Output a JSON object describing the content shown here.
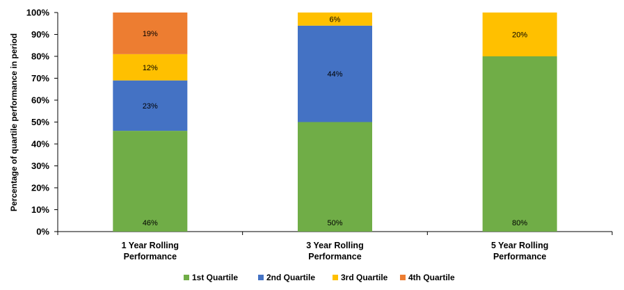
{
  "chart_data": {
    "type": "bar",
    "stacked": true,
    "categories": [
      [
        "1 Year Rolling",
        "Performance"
      ],
      [
        "3 Year Rolling",
        "Performance"
      ],
      [
        "5 Year Rolling",
        "Performance"
      ]
    ],
    "series": [
      {
        "name": "1st Quartile",
        "color": "#70AD47",
        "values": [
          46,
          50,
          80
        ],
        "labels": [
          "46%",
          "50%",
          "80%"
        ]
      },
      {
        "name": "2nd Quartile",
        "color": "#4472C4",
        "values": [
          23,
          44,
          0
        ],
        "labels": [
          "23%",
          "44%",
          null
        ]
      },
      {
        "name": "3rd Quartile",
        "color": "#FFC000",
        "values": [
          12,
          6,
          20
        ],
        "labels": [
          "12%",
          "6%",
          "20%"
        ]
      },
      {
        "name": "4th Quartile",
        "color": "#ED7D31",
        "values": [
          19,
          0,
          0
        ],
        "labels": [
          "19%",
          null,
          null
        ]
      }
    ],
    "ylabel": "Percentage of quartile performance in period",
    "xlabel": "",
    "ylim": [
      0,
      100
    ],
    "yticks": [
      "0%",
      "10%",
      "20%",
      "30%",
      "40%",
      "50%",
      "60%",
      "70%",
      "80%",
      "90%",
      "100%"
    ],
    "grid": false,
    "legend": "bottom"
  }
}
